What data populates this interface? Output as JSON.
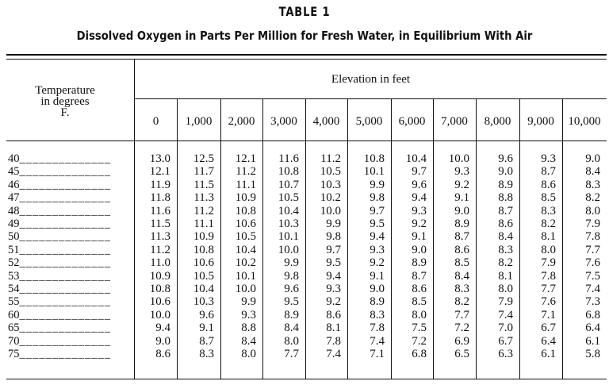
{
  "table": {
    "title": "TABLE 1",
    "caption": "Dissolved Oxygen in Parts Per Million for Fresh Water, in Equilibrium With Air",
    "stub_header": [
      "Temperature",
      "in degrees",
      "F."
    ],
    "spanner": "Elevation in feet",
    "columns": [
      "0",
      "1,000",
      "2,000",
      "3,000",
      "4,000",
      "5,000",
      "6,000",
      "7,000",
      "8,000",
      "9,000",
      "10,000"
    ],
    "dot_leader": "______________",
    "rows": [
      {
        "temp": "40",
        "values": [
          "13.0",
          "12.5",
          "12.1",
          "11.6",
          "11.2",
          "10.8",
          "10.4",
          "10.0",
          "9.6",
          "9.3",
          "9.0"
        ]
      },
      {
        "temp": "45",
        "values": [
          "12.1",
          "11.7",
          "11.2",
          "10.8",
          "10.5",
          "10.1",
          "9.7",
          "9.3",
          "9.0",
          "8.7",
          "8.4"
        ]
      },
      {
        "temp": "46",
        "values": [
          "11.9",
          "11.5",
          "11.1",
          "10.7",
          "10.3",
          "9.9",
          "9.6",
          "9.2",
          "8.9",
          "8.6",
          "8.3"
        ]
      },
      {
        "temp": "47",
        "values": [
          "11.8",
          "11.3",
          "10.9",
          "10.5",
          "10.2",
          "9.8",
          "9.4",
          "9.1",
          "8.8",
          "8.5",
          "8.2"
        ]
      },
      {
        "temp": "48",
        "values": [
          "11.6",
          "11.2",
          "10.8",
          "10.4",
          "10.0",
          "9.7",
          "9.3",
          "9.0",
          "8.7",
          "8.3",
          "8.0"
        ]
      },
      {
        "temp": "49",
        "values": [
          "11.5",
          "11.1",
          "10.6",
          "10.3",
          "9.9",
          "9.5",
          "9.2",
          "8.9",
          "8.6",
          "8.2",
          "7.9"
        ]
      },
      {
        "temp": "50",
        "values": [
          "11.3",
          "10.9",
          "10.5",
          "10.1",
          "9.8",
          "9.4",
          "9.1",
          "8.7",
          "8.4",
          "8.1",
          "7.8"
        ]
      },
      {
        "temp": "51",
        "values": [
          "11.2",
          "10.8",
          "10.4",
          "10.0",
          "9.7",
          "9.3",
          "9.0",
          "8.6",
          "8.3",
          "8.0",
          "7.7"
        ]
      },
      {
        "temp": "52",
        "values": [
          "11.0",
          "10.6",
          "10.2",
          "9.9",
          "9.5",
          "9.2",
          "8.9",
          "8.5",
          "8.2",
          "7.9",
          "7.6"
        ]
      },
      {
        "temp": "53",
        "values": [
          "10.9",
          "10.5",
          "10.1",
          "9.8",
          "9.4",
          "9.1",
          "8.7",
          "8.4",
          "8.1",
          "7.8",
          "7.5"
        ]
      },
      {
        "temp": "54",
        "values": [
          "10.8",
          "10.4",
          "10.0",
          "9.6",
          "9.3",
          "9.0",
          "8.6",
          "8.3",
          "8.0",
          "7.7",
          "7.4"
        ]
      },
      {
        "temp": "55",
        "values": [
          "10.6",
          "10.3",
          "9.9",
          "9.5",
          "9.2",
          "8.9",
          "8.5",
          "8.2",
          "7.9",
          "7.6",
          "7.3"
        ]
      },
      {
        "temp": "60",
        "values": [
          "10.0",
          "9.6",
          "9.3",
          "8.9",
          "8.6",
          "8.3",
          "8.0",
          "7.7",
          "7.4",
          "7.1",
          "6.8"
        ]
      },
      {
        "temp": "65",
        "values": [
          "9.4",
          "9.1",
          "8.8",
          "8.4",
          "8.1",
          "7.8",
          "7.5",
          "7.2",
          "7.0",
          "6.7",
          "6.4"
        ]
      },
      {
        "temp": "70",
        "values": [
          "9.0",
          "8.7",
          "8.4",
          "8.0",
          "7.8",
          "7.4",
          "7.2",
          "6.9",
          "6.7",
          "6.4",
          "6.1"
        ]
      },
      {
        "temp": "75",
        "values": [
          "8.6",
          "8.3",
          "8.0",
          "7.7",
          "7.4",
          "7.1",
          "6.8",
          "6.5",
          "6.3",
          "6.1",
          "5.8"
        ]
      }
    ]
  }
}
